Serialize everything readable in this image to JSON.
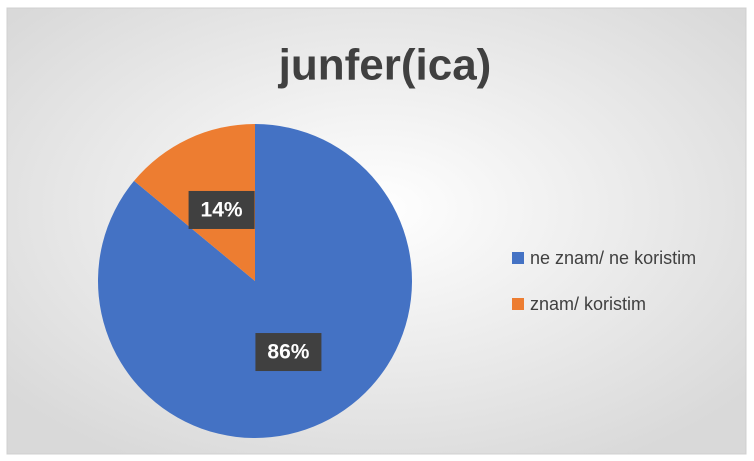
{
  "chart_data": {
    "type": "pie",
    "title": "junfer(ica)",
    "categories": [
      "ne znam/ ne koristim",
      "znam/ koristim"
    ],
    "values": [
      86,
      14
    ],
    "value_labels": [
      "86%",
      "14%"
    ],
    "colors": [
      "#4472c4",
      "#ed7d31"
    ],
    "legend": "right"
  }
}
